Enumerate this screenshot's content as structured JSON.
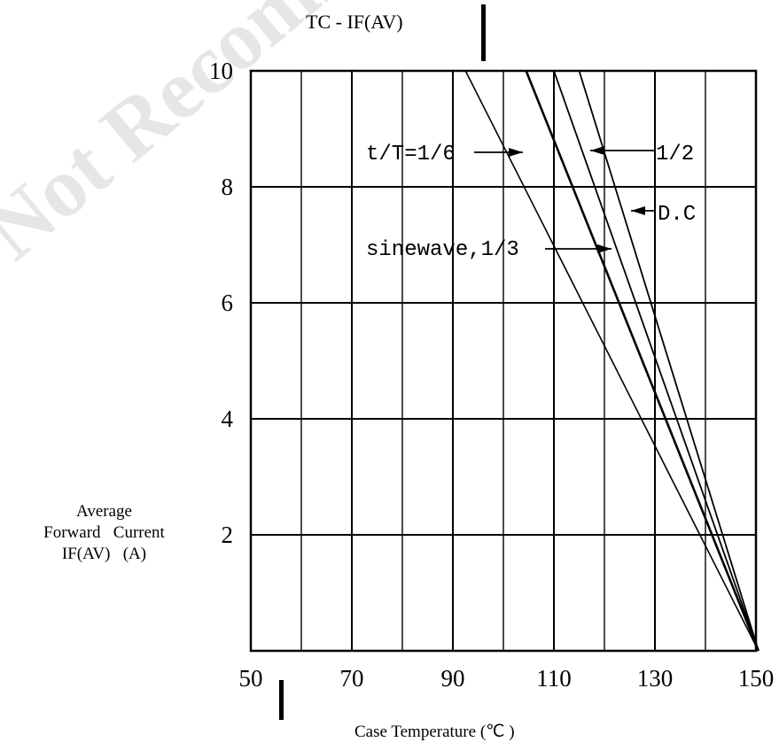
{
  "watermark": "Not Recommended",
  "title": "TC - IF(AV)",
  "ylabel": {
    "line1": "Average",
    "line2": "Forward   Current",
    "line3": "IF(AV)   (A)"
  },
  "xlabel": "Case Temperature (℃ )",
  "chart_data": {
    "type": "line",
    "title": "TC - IF(AV)",
    "xlabel": "Case Temperature (℃ )",
    "ylabel": "Average Forward Current IF(AV) (A)",
    "xlim": [
      50,
      150
    ],
    "ylim": [
      0,
      10
    ],
    "x_ticks": [
      "50",
      "70",
      "90",
      "110",
      "130",
      "150"
    ],
    "y_ticks": [
      "2",
      "4",
      "6",
      "8",
      "10"
    ],
    "grid": true,
    "series": [
      {
        "name": "t/T=1/6",
        "x": [
          150.5,
          92.5
        ],
        "y": [
          0,
          10
        ]
      },
      {
        "name": "sinewave,1/3",
        "x": [
          150.5,
          104.5
        ],
        "y": [
          0,
          10
        ]
      },
      {
        "name": "1/2",
        "x": [
          150.5,
          110
        ],
        "y": [
          0,
          10
        ]
      },
      {
        "name": "D.C",
        "x": [
          150.5,
          115
        ],
        "y": [
          0,
          10
        ]
      }
    ],
    "annotations": [
      {
        "text": "t/T=1/6",
        "target": "t/T=1/6"
      },
      {
        "text": "1/2",
        "target": "1/2"
      },
      {
        "text": "D.C",
        "target": "D.C"
      },
      {
        "text": "sinewave,1/3",
        "target": "sinewave,1/3"
      }
    ]
  }
}
